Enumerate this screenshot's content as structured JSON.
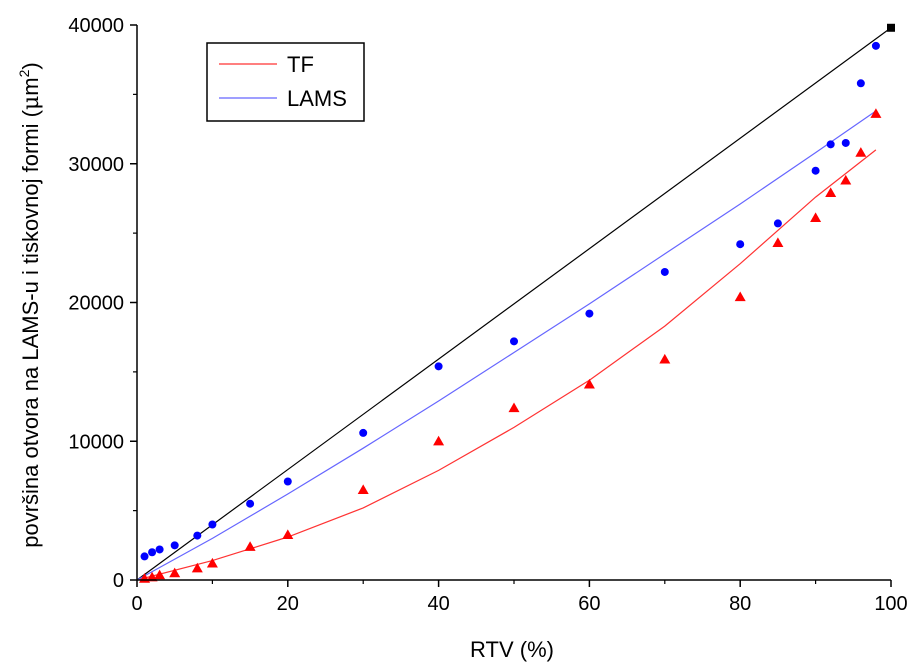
{
  "chart_data": {
    "type": "scatter",
    "title": "",
    "xlabel": "RTV (%)",
    "ylabel_main": "površina otvora na LAMS-u i tiskovnoj formi (",
    "ylabel_mu": "μ",
    "ylabel_m": "m",
    "ylabel_exp": "2",
    "ylabel_close": ")",
    "xlim": [
      0,
      100
    ],
    "ylim": [
      0,
      40000
    ],
    "xticks": [
      0,
      20,
      40,
      60,
      80,
      100
    ],
    "yticks": [
      0,
      10000,
      20000,
      30000,
      40000
    ],
    "xtick_labels": [
      "0",
      "20",
      "40",
      "60",
      "80",
      "100"
    ],
    "ytick_labels": [
      "0",
      "10000",
      "20000",
      "30000",
      "40000"
    ],
    "grid": false,
    "legend_position": "top-left",
    "legend": [
      {
        "label": "TF",
        "color": "#ff3333"
      },
      {
        "label": "LAMS",
        "color": "#6666ff"
      }
    ],
    "reference_line": {
      "color": "#000000",
      "points": [
        [
          0,
          0
        ],
        [
          100,
          39800
        ]
      ]
    },
    "reference_marker": {
      "x": 100,
      "y": 39800,
      "color": "#000000"
    },
    "series": [
      {
        "name": "TF",
        "marker": "triangle",
        "color": "#ff0000",
        "x": [
          1,
          2,
          3,
          5,
          8,
          10,
          15,
          20,
          30,
          40,
          50,
          60,
          70,
          80,
          85,
          90,
          92,
          94,
          96,
          98
        ],
        "y": [
          100,
          200,
          350,
          500,
          850,
          1200,
          2400,
          3250,
          6500,
          10000,
          12400,
          14100,
          15900,
          20400,
          24300,
          26100,
          27900,
          28800,
          30800,
          33600
        ]
      },
      {
        "name": "LAMS",
        "marker": "circle",
        "color": "#0000ff",
        "x": [
          1,
          2,
          3,
          5,
          8,
          10,
          15,
          20,
          30,
          40,
          50,
          60,
          70,
          80,
          85,
          90,
          92,
          94,
          96,
          98
        ],
        "y": [
          1700,
          2000,
          2200,
          2500,
          3200,
          4000,
          5500,
          7100,
          10600,
          15400,
          17200,
          19200,
          22200,
          24200,
          25700,
          29500,
          31400,
          31500,
          35800,
          38500
        ]
      }
    ],
    "fit_lines": [
      {
        "name": "TF",
        "color": "#ff3333",
        "x": [
          0,
          10,
          20,
          30,
          40,
          50,
          60,
          70,
          80,
          90,
          98
        ],
        "y": [
          0,
          1400,
          3100,
          5200,
          7900,
          11000,
          14400,
          18300,
          22800,
          27600,
          31000
        ]
      },
      {
        "name": "LAMS",
        "color": "#6666ff",
        "x": [
          0,
          10,
          20,
          30,
          40,
          50,
          60,
          70,
          80,
          90,
          98
        ],
        "y": [
          0,
          3000,
          6200,
          9500,
          12900,
          16400,
          19900,
          23500,
          27100,
          30800,
          33800
        ]
      }
    ]
  }
}
